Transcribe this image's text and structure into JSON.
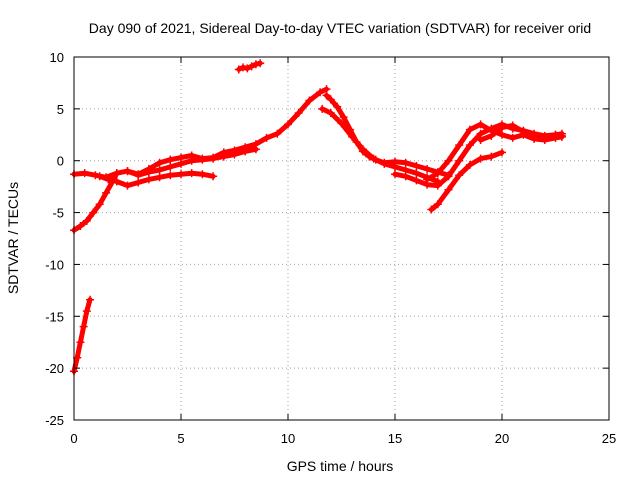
{
  "chart_data": {
    "type": "scatter",
    "title": "Day 090 of 2021, Sidereal Day-to-day VTEC variation (SDTVAR) for receiver orid",
    "xlabel": "GPS time / hours",
    "ylabel": "SDTVAR / TECUs",
    "xlim": [
      0,
      25
    ],
    "ylim": [
      -25,
      10
    ],
    "x_ticks": [
      0,
      5,
      10,
      15,
      20,
      25
    ],
    "y_ticks": [
      -25,
      -20,
      -15,
      -10,
      -5,
      0,
      5,
      10
    ],
    "x_tick_labels": [
      "0",
      "5",
      "10",
      "15",
      "20",
      "25"
    ],
    "y_tick_labels": [
      "-25",
      "-20",
      "-15",
      "-10",
      "-5",
      "0",
      "5",
      "10"
    ],
    "grid": true,
    "marker": "+",
    "color": "#ff0000",
    "series": [
      {
        "name": "seg-main-upper",
        "x": [
          0.0,
          0.5,
          1.0,
          1.5,
          2.0,
          2.5,
          3.0,
          3.5,
          4.0,
          4.5,
          5.0,
          5.5,
          6.0,
          6.5,
          7.0,
          7.5,
          8.0,
          8.5,
          9.0,
          9.5,
          10.0,
          10.5,
          11.0,
          11.5,
          11.8
        ],
        "y": [
          -1.3,
          -1.2,
          -1.4,
          -1.6,
          -1.2,
          -1.0,
          -1.3,
          -0.8,
          -0.2,
          0.1,
          0.3,
          0.5,
          0.2,
          0.3,
          0.8,
          1.0,
          1.3,
          1.6,
          2.2,
          2.6,
          3.5,
          4.6,
          5.8,
          6.6,
          6.9
        ]
      },
      {
        "name": "seg-main-lower",
        "x": [
          1.2,
          1.6,
          2.0,
          2.5,
          3.0,
          3.5,
          4.0,
          4.5,
          5.0,
          5.5,
          6.0,
          6.5
        ],
        "y": [
          -1.5,
          -1.8,
          -2.0,
          -2.4,
          -2.1,
          -1.8,
          -1.6,
          -1.4,
          -1.3,
          -1.2,
          -1.3,
          -1.5
        ]
      },
      {
        "name": "seg-mid-lower",
        "x": [
          2.5,
          3.0,
          3.5,
          4.0,
          4.5,
          5.0,
          5.5,
          6.0,
          6.5,
          7.0,
          7.5,
          8.0,
          8.5
        ],
        "y": [
          -1.0,
          -1.4,
          -1.1,
          -0.9,
          -0.6,
          -0.3,
          0.0,
          0.1,
          0.2,
          0.4,
          0.6,
          0.9,
          1.1
        ]
      },
      {
        "name": "seg-early-rise",
        "x": [
          0.0,
          0.3,
          0.6,
          0.9,
          1.2,
          1.5,
          1.8,
          2.0
        ],
        "y": [
          -6.7,
          -6.3,
          -5.8,
          -5.0,
          -4.2,
          -3.1,
          -2.0,
          -1.2
        ]
      },
      {
        "name": "seg-early-spike",
        "x": [
          0.0,
          0.15,
          0.3,
          0.45,
          0.6,
          0.75
        ],
        "y": [
          -20.3,
          -19.0,
          -17.5,
          -16.0,
          -14.5,
          -13.4
        ]
      },
      {
        "name": "seg-dot-8h",
        "x": [
          7.7,
          7.9,
          8.1,
          8.3,
          8.5,
          8.7
        ],
        "y": [
          8.8,
          9.0,
          8.9,
          9.1,
          9.3,
          9.4
        ]
      },
      {
        "name": "seg-peak-decline",
        "x": [
          11.8,
          12.0,
          12.3,
          12.6,
          12.9,
          13.2,
          13.5,
          13.8,
          14.1,
          14.5,
          15.0,
          15.5,
          16.0,
          16.5,
          17.0,
          17.5
        ],
        "y": [
          6.3,
          5.9,
          5.2,
          4.2,
          3.0,
          1.8,
          0.9,
          0.4,
          0.1,
          -0.2,
          -0.1,
          -0.2,
          -0.5,
          -0.8,
          -1.1,
          -1.4
        ]
      },
      {
        "name": "seg-peak-decline-2",
        "x": [
          11.6,
          12.0,
          12.5,
          13.0,
          13.5,
          14.0,
          14.5,
          15.0,
          15.5,
          16.0,
          16.5,
          17.0
        ],
        "y": [
          5.0,
          4.6,
          3.6,
          2.3,
          1.1,
          0.2,
          -0.3,
          -0.6,
          -0.9,
          -1.2,
          -1.6,
          -2.0
        ]
      },
      {
        "name": "seg-pm-upper",
        "x": [
          15.0,
          15.5,
          16.0,
          16.5,
          17.0,
          17.5,
          18.0,
          18.5,
          19.0,
          19.5,
          20.0,
          20.5,
          21.0,
          21.5,
          22.0,
          22.5,
          22.8
        ],
        "y": [
          -1.3,
          -1.5,
          -1.9,
          -2.3,
          -2.4,
          -1.5,
          0.0,
          1.5,
          2.6,
          3.1,
          3.5,
          3.1,
          2.9,
          2.6,
          2.4,
          2.5,
          2.6
        ]
      },
      {
        "name": "seg-pm-mid",
        "x": [
          16.5,
          17.0,
          17.5,
          18.0,
          18.5,
          19.0,
          19.5,
          20.0,
          20.5,
          21.0,
          21.5,
          22.0,
          22.5,
          22.8
        ],
        "y": [
          -1.8,
          -1.2,
          0.0,
          1.5,
          3.0,
          3.5,
          2.9,
          2.5,
          2.2,
          2.5,
          2.1,
          2.0,
          2.2,
          2.3
        ]
      },
      {
        "name": "seg-pm-lower",
        "x": [
          16.7,
          17.0,
          17.5,
          18.0,
          18.5,
          19.0,
          19.5,
          20.0
        ],
        "y": [
          -4.7,
          -4.2,
          -2.8,
          -1.4,
          -0.4,
          0.2,
          0.4,
          0.8
        ]
      },
      {
        "name": "seg-pm-late",
        "x": [
          19.0,
          19.5,
          20.0,
          20.5,
          21.0,
          21.5,
          22.0,
          22.5,
          22.8
        ],
        "y": [
          2.0,
          2.4,
          3.2,
          3.4,
          2.8,
          2.2,
          2.3,
          2.5,
          2.4
        ]
      }
    ]
  }
}
